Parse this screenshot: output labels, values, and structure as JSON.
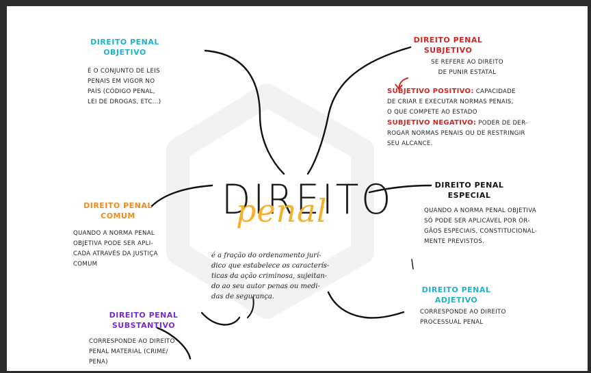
{
  "center": {
    "title": "DIREITO",
    "script": "penal",
    "definition": [
      "é a fração do ordenamento jurí-",
      "dico que estabelece os caracterís-",
      "ticas da ação criminosa, sujeitan-",
      "do ao seu autor penas ou medi-",
      "das de segurança."
    ]
  },
  "objetivo": {
    "title": [
      "DIREITO PENAL",
      "OBJETIVO"
    ],
    "body": [
      "É O CONJUNTO DE LEIS",
      "PENAIS EM VIGOR NO",
      "PAÍS (CÓDIGO PENAL,",
      "LEI DE DROGAS, ETC...)"
    ]
  },
  "subjetivo": {
    "title": [
      "DIREITO PENAL",
      "SUBJETIVO"
    ],
    "body": [
      "SE REFERE AO DIREITO",
      "DE PUNIR ESTATAL"
    ],
    "positivo_label": "SUBJETIVO POSITIVO:",
    "positivo_text": [
      "CAPACIDADE",
      "DE CRIAR E EXECUTAR NORMAS PENAIS,",
      "O QUE COMPETE AO ESTADO"
    ],
    "negativo_label": "SUBJETIVO NEGATIVO:",
    "negativo_text": [
      "PODER DE DER-",
      "ROGAR NORMAS PENAIS OU DE RESTRINGIR",
      "SEU ALCANCE."
    ]
  },
  "comum": {
    "title": [
      "DIREITO PENAL",
      "COMUM"
    ],
    "body": [
      "QUANDO A NORMA PENAL",
      "OBJETIVA PODE SER APLI-",
      "CADA ATRAVÉS DA JUSTIÇA",
      "COMUM"
    ]
  },
  "especial": {
    "title": [
      "DIREITO PENAL",
      "ESPECIAL"
    ],
    "body": [
      "QUANDO A NORMA PENAL OBJETIVA",
      "SÓ PODE SER APLICÁVEL POR ÓR-",
      "GÃOS ESPECIAIS, CONSTITUCIONAL-",
      "MENTE PREVISTOS."
    ]
  },
  "substantivo": {
    "title": [
      "DIREITO PENAL",
      "SUBSTANTIVO"
    ],
    "body": [
      "CORRESPONDE AO DIREITO",
      "PENAL MATERIAL (CRIME/",
      "PENA)"
    ]
  },
  "adjetivo": {
    "title": [
      "DIREITO PENAL",
      "ADJETIVO"
    ],
    "body": [
      "CORRESPONDE AO DIREITO",
      "PROCESSUAL PENAL"
    ]
  },
  "colors": {
    "red": "#d62424",
    "cyan": "#1fb2c9",
    "orange": "#f08a1c",
    "purple": "#7b2ad1",
    "yellow": "#f4b12f",
    "frame": "#2b2b2b"
  }
}
